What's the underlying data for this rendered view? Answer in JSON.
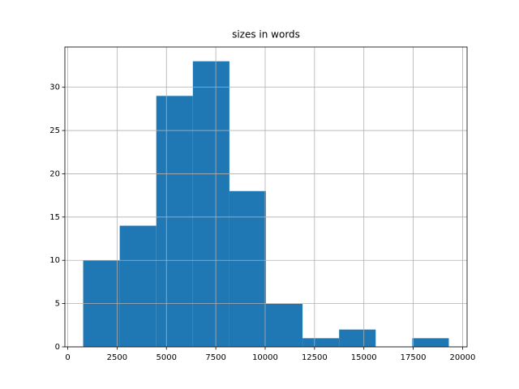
{
  "chart_data": {
    "type": "histogram",
    "title": "sizes in words",
    "bins": [
      782,
      2634,
      4486,
      6338,
      8190,
      10042,
      11894,
      13746,
      15598,
      17450,
      19302
    ],
    "values": [
      10,
      14,
      29,
      33,
      18,
      5,
      1,
      2,
      0,
      1
    ],
    "color": "#1f77b4",
    "xlim": [
      -144,
      20228
    ],
    "xticks": [
      0,
      2500,
      5000,
      7500,
      10000,
      12500,
      15000,
      17500,
      20000
    ],
    "ylim": [
      0,
      34.65
    ],
    "yticks": [
      0,
      5,
      10,
      15,
      20,
      25,
      30
    ],
    "grid": true
  }
}
